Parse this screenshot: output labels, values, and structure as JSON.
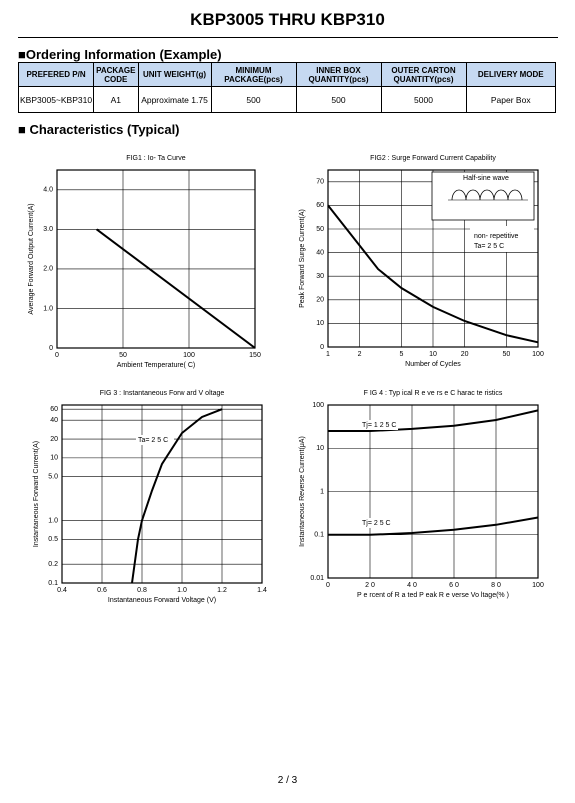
{
  "header": {
    "title": "KBP3005 THRU KBP310"
  },
  "ordering": {
    "heading": "■Ordering Information (Example)",
    "columns": [
      "PREFERED P/N",
      "PACKAGE CODE",
      "UNIT WEIGHT(g)",
      "MINIMUM PACKAGE(pcs)",
      "INNER BOX QUANTITY(pcs)",
      "OUTER CARTON QUANTITY(pcs)",
      "DELIVERY MODE"
    ],
    "rows": [
      [
        "KBP3005~KBP310",
        "A1",
        "Approximate 1.75",
        "500",
        "500",
        "5000",
        "Paper Box"
      ]
    ]
  },
  "characteristics_heading": "■ Characteristics (Typical)",
  "chart_data": [
    {
      "type": "line",
      "title": "FIG1 : Io- Ta Curve",
      "x_label": "Ambient     Temperature( C)",
      "y_label": "Average Forward Output Current(A)",
      "x": [
        30,
        150
      ],
      "values": [
        3.0,
        0
      ],
      "color": "#000000",
      "xlim": [
        0,
        150
      ],
      "xticks": [
        0,
        50,
        100,
        150
      ],
      "ylim": [
        0,
        4.5
      ],
      "yticks": [
        0,
        {
          "value": 1,
          "label": "1.0"
        },
        {
          "value": 2,
          "label": "2.0"
        },
        {
          "value": 3,
          "label": "3.0"
        },
        {
          "value": 4,
          "label": "4.0"
        }
      ],
      "grid": true
    },
    {
      "type": "line",
      "title": "FIG2 : Surge Forward Current Capability",
      "x_label": "Number of Cycles",
      "y_label": "Peak Forward Surge Current(A)",
      "annotations": [
        "Half-sine wave",
        "non- repetitive",
        "Ta= 2 5 C"
      ],
      "x": [
        1,
        2,
        3,
        5,
        10,
        20,
        50,
        100
      ],
      "values": [
        60,
        43,
        33,
        25,
        17,
        11,
        5,
        2
      ],
      "color": "#000000",
      "xscale": "log",
      "xlim": [
        1,
        100
      ],
      "xticks": [
        1,
        2,
        5,
        10,
        20,
        50,
        100
      ],
      "ylim": [
        0,
        75
      ],
      "yticks": [
        0,
        10,
        20,
        30,
        40,
        50,
        60,
        70
      ],
      "grid": true
    },
    {
      "type": "line",
      "title": "FIG 3 : Instantaneous Forw ard V oltage",
      "x_label": "Instantaneous Forward Voltage (V)",
      "y_label": "Instantaneous Forward Current(A)",
      "annotations": [
        "Ta= 2 5 C"
      ],
      "x": [
        0.75,
        0.78,
        0.8,
        0.85,
        0.9,
        1.0,
        1.1,
        1.2
      ],
      "values": [
        0.1,
        0.5,
        1,
        3,
        8,
        25,
        45,
        60
      ],
      "color": "#000000",
      "xlim": [
        0.4,
        1.4
      ],
      "xticks": [
        0.4,
        0.6,
        0.8,
        {
          "value": 1,
          "label": "1.0"
        },
        1.2,
        1.4
      ],
      "yscale": "log",
      "ylim": [
        0.1,
        70
      ],
      "yticks": [
        0.1,
        0.2,
        0.5,
        {
          "value": 1,
          "label": "1.0"
        },
        {
          "value": 5,
          "label": "5.0"
        },
        10,
        20,
        40,
        60
      ],
      "grid": true
    },
    {
      "type": "line",
      "title": "F IG 4 : Typ ical R e ve rs e C harac te ristics",
      "x_label": "P e rcent of R a ted P eak R e verse Vo ltage(% )",
      "y_label": "Instantaneous Reverse Current(μA)",
      "x": [
        0,
        20,
        40,
        60,
        80,
        100
      ],
      "series": [
        {
          "name": "Tj= 1 2 5 C",
          "color": "#000000",
          "values": [
            25,
            25,
            28,
            33,
            45,
            75
          ]
        },
        {
          "name": "Tj= 2 5 C",
          "color": "#000000",
          "values": [
            0.1,
            0.1,
            0.11,
            0.13,
            0.17,
            0.25
          ]
        }
      ],
      "xlim": [
        0,
        100
      ],
      "xticks": [
        0,
        {
          "value": 20,
          "label": "2 0"
        },
        {
          "value": 40,
          "label": "4 0"
        },
        {
          "value": 60,
          "label": "6 0"
        },
        {
          "value": 80,
          "label": "8 0"
        },
        100
      ],
      "yscale": "log",
      "ylim": [
        0.01,
        100
      ],
      "yticks": [
        0.01,
        0.1,
        1,
        10,
        100
      ],
      "grid": true
    }
  ],
  "footer": {
    "page": "2 / 3"
  }
}
